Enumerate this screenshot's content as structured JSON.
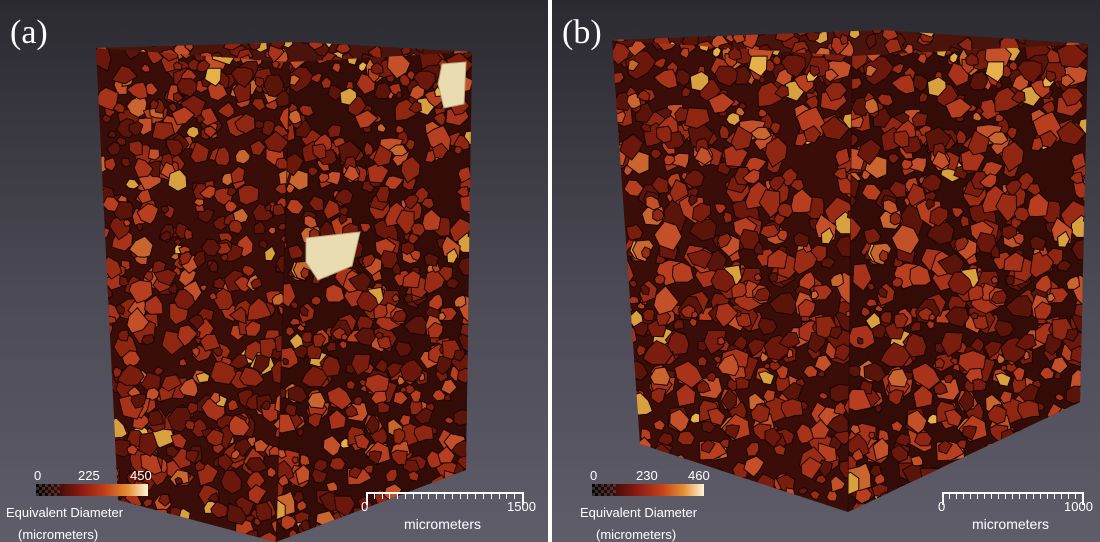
{
  "panels": [
    {
      "label": "(a)",
      "colorbar": {
        "min": "0",
        "mid": "225",
        "max": "450",
        "title_line1": "Equivalent Diameter",
        "title_line2": "(micrometers)"
      },
      "scalebar": {
        "start": "0",
        "end": "1500",
        "unit": "micrometers"
      }
    },
    {
      "label": "(b)",
      "colorbar": {
        "min": "0",
        "mid": "230",
        "max": "460",
        "title_line1": "Equivalent Diameter",
        "title_line2": "(micrometers)"
      },
      "scalebar": {
        "start": "0",
        "end": "1000",
        "unit": "micrometers"
      }
    }
  ],
  "colors": {
    "background_top": "#2b2a30",
    "background_bottom": "#5f5d6a",
    "grain_dark": "#3a0d08",
    "grain_mid": "#a8321a",
    "grain_light": "#d9a040",
    "grain_pale": "#e8dcb0"
  }
}
